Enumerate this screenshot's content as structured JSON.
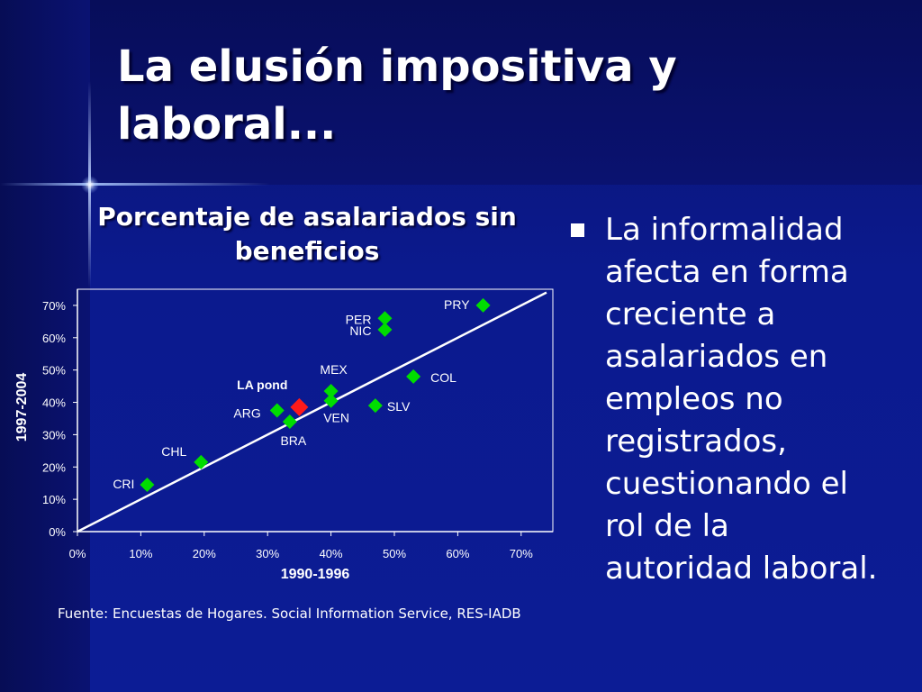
{
  "slide": {
    "title": "La elusión impositiva y laboral...",
    "source": "Fuente: Encuestas de Hogares. Social Information Service, RES-IADB"
  },
  "bullets": [
    {
      "text": "La informalidad\nafecta en forma\ncreciente a\nasalariados en\nempleos no\nregistrados,\ncuestionando el\nrol de la\nautoridad laboral."
    }
  ],
  "colors": {
    "background": "#0b1a8e",
    "country_marker": "#00dd00",
    "highlight_marker": "#ff1a1a",
    "text": "#ffffff"
  },
  "chart_data": {
    "type": "scatter",
    "title": "Porcentaje de asalariados sin beneficios",
    "xlabel": "1990-1996",
    "ylabel": "1997-2004",
    "xlim": [
      0,
      75
    ],
    "ylim": [
      0,
      75
    ],
    "x_ticks": [
      "0%",
      "10%",
      "20%",
      "30%",
      "40%",
      "50%",
      "60%",
      "70%"
    ],
    "y_ticks": [
      "0%",
      "10%",
      "20%",
      "30%",
      "40%",
      "50%",
      "60%",
      "70%"
    ],
    "grid": false,
    "reference_line": {
      "from": [
        0,
        0
      ],
      "to": [
        74,
        74
      ],
      "label": ""
    },
    "points": [
      {
        "label": "CRI",
        "x": 11,
        "y": 14.5,
        "highlight": false
      },
      {
        "label": "CHL",
        "x": 19.5,
        "y": 21.5,
        "highlight": false
      },
      {
        "label": "ARG",
        "x": 31.5,
        "y": 37.5,
        "highlight": false
      },
      {
        "label": "BRA",
        "x": 33.5,
        "y": 34,
        "highlight": false
      },
      {
        "label": "LA pond",
        "x": 35,
        "y": 38.5,
        "highlight": true
      },
      {
        "label": "MEX",
        "x": 40,
        "y": 43.5,
        "highlight": false
      },
      {
        "label": "VEN",
        "x": 40,
        "y": 40.5,
        "highlight": false
      },
      {
        "label": "SLV",
        "x": 47,
        "y": 39,
        "highlight": false
      },
      {
        "label": "PER",
        "x": 48.5,
        "y": 66,
        "highlight": false
      },
      {
        "label": "NIC",
        "x": 48.5,
        "y": 62.5,
        "highlight": false
      },
      {
        "label": "COL",
        "x": 53,
        "y": 48,
        "highlight": false
      },
      {
        "label": "PRY",
        "x": 64,
        "y": 70,
        "highlight": false
      }
    ]
  }
}
